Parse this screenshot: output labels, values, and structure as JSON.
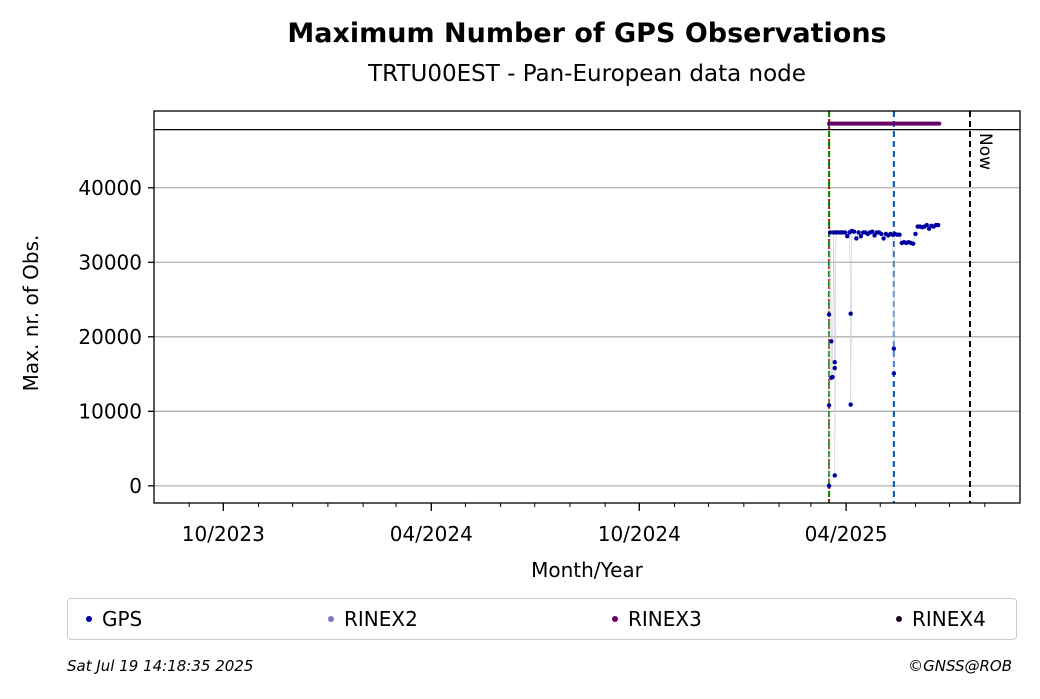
{
  "chart_data": {
    "type": "scatter",
    "title": "Maximum Number of GPS Observations",
    "subtitle": "TRTU00EST - Pan-European data node",
    "xlabel": "Month/Year",
    "ylabel": "Max. nr. of Obs.",
    "x_range": [
      "2023-08-01",
      "2025-09-01"
    ],
    "ylim": [
      -2300,
      50300
    ],
    "y_ticks": [
      0,
      10000,
      20000,
      30000,
      40000
    ],
    "x_ticks": [
      {
        "date": "2023-10-01",
        "label": "10/2023"
      },
      {
        "date": "2024-04-01",
        "label": "04/2024"
      },
      {
        "date": "2024-10-01",
        "label": "10/2024"
      },
      {
        "date": "2025-04-01",
        "label": "04/2025"
      }
    ],
    "grid": "horizontal",
    "legend_position": "bottom",
    "series": [
      {
        "name": "GPS",
        "color": "#0000a0",
        "points": [
          [
            "2025-03-17",
            0
          ],
          [
            "2025-03-17",
            10800
          ],
          [
            "2025-03-17",
            23000
          ],
          [
            "2025-03-18",
            34000
          ],
          [
            "2025-03-19",
            19400
          ],
          [
            "2025-03-19",
            14500
          ],
          [
            "2025-03-20",
            14600
          ],
          [
            "2025-03-21",
            34000
          ],
          [
            "2025-03-22",
            16600
          ],
          [
            "2025-03-22",
            15800
          ],
          [
            "2025-03-22",
            1400
          ],
          [
            "2025-03-23",
            34000
          ],
          [
            "2025-03-25",
            34000
          ],
          [
            "2025-03-27",
            34000
          ],
          [
            "2025-03-29",
            34000
          ],
          [
            "2025-03-31",
            34000
          ],
          [
            "2025-04-02",
            33500
          ],
          [
            "2025-04-04",
            34000
          ],
          [
            "2025-04-05",
            23100
          ],
          [
            "2025-04-05",
            10900
          ],
          [
            "2025-04-06",
            34200
          ],
          [
            "2025-04-08",
            34100
          ],
          [
            "2025-04-10",
            33200
          ],
          [
            "2025-04-12",
            34000
          ],
          [
            "2025-04-14",
            33500
          ],
          [
            "2025-04-16",
            34000
          ],
          [
            "2025-04-18",
            34000
          ],
          [
            "2025-04-20",
            33800
          ],
          [
            "2025-04-22",
            34000
          ],
          [
            "2025-04-24",
            34100
          ],
          [
            "2025-04-26",
            33600
          ],
          [
            "2025-04-28",
            34000
          ],
          [
            "2025-04-30",
            34000
          ],
          [
            "2025-05-02",
            33800
          ],
          [
            "2025-05-04",
            33200
          ],
          [
            "2025-05-06",
            33800
          ],
          [
            "2025-05-08",
            33600
          ],
          [
            "2025-05-10",
            33800
          ],
          [
            "2025-05-12",
            33700
          ],
          [
            "2025-05-13",
            18400
          ],
          [
            "2025-05-13",
            15100
          ],
          [
            "2025-05-14",
            33800
          ],
          [
            "2025-05-16",
            33700
          ],
          [
            "2025-05-18",
            33700
          ],
          [
            "2025-05-20",
            32600
          ],
          [
            "2025-05-22",
            32700
          ],
          [
            "2025-05-24",
            32600
          ],
          [
            "2025-05-26",
            32700
          ],
          [
            "2025-05-28",
            32600
          ],
          [
            "2025-05-30",
            32500
          ],
          [
            "2025-06-01",
            33800
          ],
          [
            "2025-06-03",
            34800
          ],
          [
            "2025-06-05",
            34800
          ],
          [
            "2025-06-07",
            34700
          ],
          [
            "2025-06-09",
            34800
          ],
          [
            "2025-06-11",
            35000
          ],
          [
            "2025-06-13",
            34500
          ],
          [
            "2025-06-15",
            34900
          ],
          [
            "2025-06-17",
            34800
          ],
          [
            "2025-06-19",
            35000
          ],
          [
            "2025-06-21",
            35000
          ]
        ]
      },
      {
        "name": "RINEX2",
        "color": "#7b7bbf",
        "points": []
      },
      {
        "name": "RINEX3",
        "color": "#660066",
        "points_constant": {
          "y": 48600,
          "from": "2025-03-17",
          "to": "2025-06-22",
          "step_days": 1
        }
      },
      {
        "name": "RINEX4",
        "color": "#220022",
        "points": []
      }
    ],
    "vertical_lines": [
      {
        "date": "2025-03-17",
        "color": "#cc0000",
        "style": "dotted"
      },
      {
        "date": "2025-03-17",
        "color": "#008800",
        "style": "dashed"
      },
      {
        "date": "2025-05-13",
        "color": "#0055bb",
        "style": "dashed"
      },
      {
        "date": "2025-07-19",
        "color": "#000000",
        "style": "dashed",
        "label": "Now"
      }
    ],
    "horizontal_line": {
      "y": 47800,
      "color": "#000000"
    }
  },
  "legend": [
    {
      "label": "GPS",
      "color": "#0000a0"
    },
    {
      "label": "RINEX2",
      "color": "#7b7bbf"
    },
    {
      "label": "RINEX3",
      "color": "#660066"
    },
    {
      "label": "RINEX4",
      "color": "#220022"
    }
  ],
  "footer": {
    "timestamp": "Sat Jul 19 14:18:35 2025",
    "credit": "©GNSS@ROB"
  }
}
